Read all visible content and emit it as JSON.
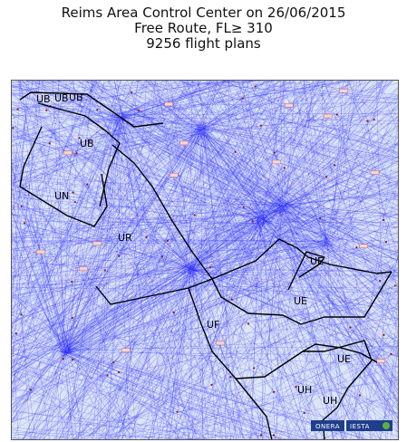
{
  "title": {
    "line1": "Reims Area Control Center on 26/06/2015",
    "line2": "Free Route, FL≥ 310",
    "line3": "9256 flight plans"
  },
  "map": {
    "sectors": [
      "UB",
      "UN",
      "UR",
      "UF",
      "UE",
      "UE",
      "UE",
      "UH",
      "UB",
      "UB",
      "UB"
    ],
    "logo": {
      "left": "ONERA",
      "right": "IESTA"
    },
    "colors": {
      "trajectories": "#1a1aff",
      "background": "#dde6f5",
      "boundaries": "#000000",
      "airways": "#e08a8a"
    }
  }
}
